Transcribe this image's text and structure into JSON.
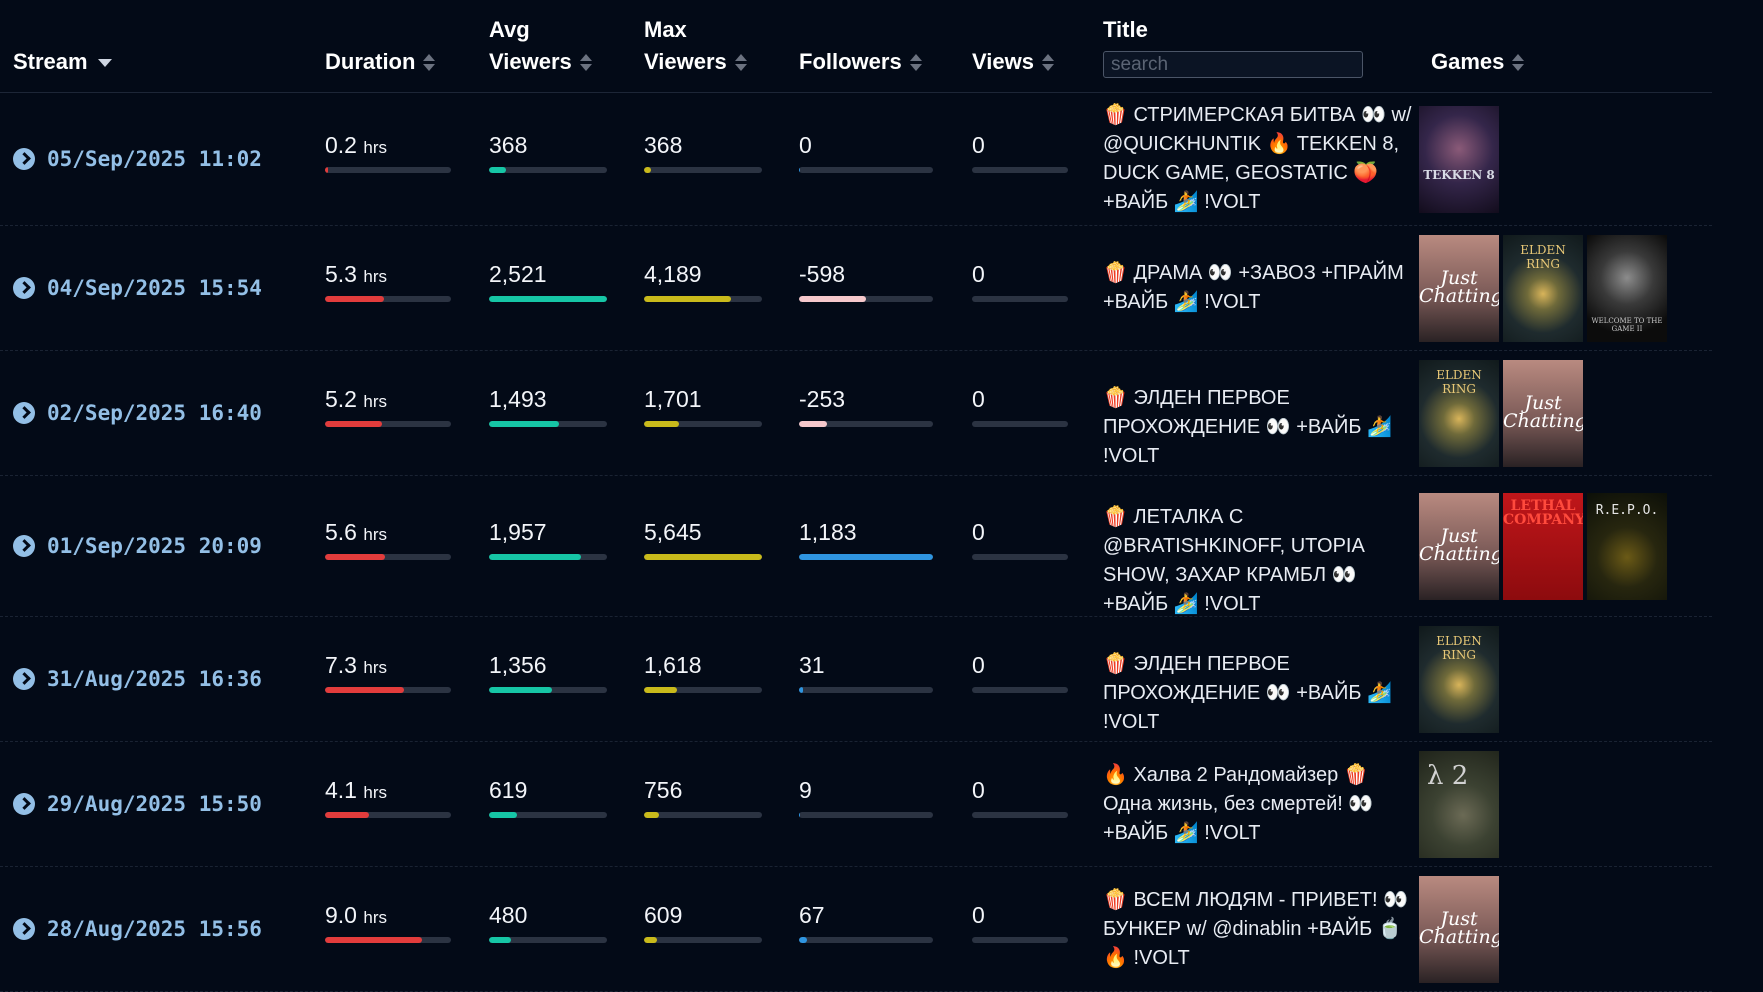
{
  "headers": {
    "stream": "Stream",
    "duration": "Duration",
    "avg_line1": "Avg",
    "avg_line2": "Viewers",
    "max_line1": "Max",
    "max_line2": "Viewers",
    "followers": "Followers",
    "views": "Views",
    "title": "Title",
    "games": "Games",
    "search_placeholder": "search"
  },
  "colors": {
    "duration": "#e23c3c",
    "avg": "#16c6a6",
    "max": "#c9ba1b",
    "followers_pos": "#2f95e0",
    "followers_neg": "#f6c8cc"
  },
  "rows": [
    {
      "date": "05/Sep/2025 11:02",
      "duration": "0.2",
      "duration_unit": "hrs",
      "duration_fill": 0.02,
      "avg": "368",
      "avg_fill": 0.14,
      "max": "368",
      "max_fill": 0.06,
      "followers": "0",
      "followers_fill": 0.01,
      "followers_kind": "pos",
      "views": "0",
      "title": "🍿 СТРИМЕРСКАЯ БИТВА 👀 w/ @QUICKHUNTIK 🔥 TEKKEN 8, DUCK GAME, GEOSTATIC 🍑 +ВАЙБ 🏄 !VOLT",
      "games": [
        "tekken"
      ]
    },
    {
      "date": "04/Sep/2025 15:54",
      "duration": "5.3",
      "duration_unit": "hrs",
      "duration_fill": 0.47,
      "avg": "2,521",
      "avg_fill": 1.0,
      "max": "4,189",
      "max_fill": 0.74,
      "followers": "-598",
      "followers_fill": 0.5,
      "followers_kind": "neg",
      "views": "0",
      "title": "🍿 ДРАМА 👀 +ЗАВОЗ +ПРАЙМ +ВАЙБ 🏄 !VOLT",
      "games": [
        "chatting",
        "elden",
        "welcome"
      ]
    },
    {
      "date": "02/Sep/2025 16:40",
      "duration": "5.2",
      "duration_unit": "hrs",
      "duration_fill": 0.45,
      "avg": "1,493",
      "avg_fill": 0.59,
      "max": "1,701",
      "max_fill": 0.3,
      "followers": "-253",
      "followers_fill": 0.21,
      "followers_kind": "neg",
      "views": "0",
      "title": "🍿 ЭЛДЕН ПЕРВОЕ ПРОХОЖДЕНИЕ 👀 +ВАЙБ 🏄 !VOLT",
      "games": [
        "elden",
        "chatting"
      ]
    },
    {
      "date": "01/Sep/2025 20:09",
      "duration": "5.6",
      "duration_unit": "hrs",
      "duration_fill": 0.48,
      "avg": "1,957",
      "avg_fill": 0.78,
      "max": "5,645",
      "max_fill": 1.0,
      "followers": "1,183",
      "followers_fill": 1.0,
      "followers_kind": "pos",
      "views": "0",
      "title": "🍿 ЛЕТАЛКА С @BRATISHKINOFF, UTOPIA SHOW, ЗАХАР КРАМБЛ 👀 +ВАЙБ 🏄 !VOLT",
      "games": [
        "chatting",
        "lethal",
        "repo"
      ]
    },
    {
      "date": "31/Aug/2025 16:36",
      "duration": "7.3",
      "duration_unit": "hrs",
      "duration_fill": 0.63,
      "avg": "1,356",
      "avg_fill": 0.53,
      "max": "1,618",
      "max_fill": 0.28,
      "followers": "31",
      "followers_fill": 0.03,
      "followers_kind": "pos",
      "views": "0",
      "title": "🍿 ЭЛДЕН ПЕРВОЕ ПРОХОЖДЕНИЕ 👀 +ВАЙБ 🏄 !VOLT",
      "games": [
        "elden"
      ]
    },
    {
      "date": "29/Aug/2025 15:50",
      "duration": "4.1",
      "duration_unit": "hrs",
      "duration_fill": 0.35,
      "avg": "619",
      "avg_fill": 0.24,
      "max": "756",
      "max_fill": 0.13,
      "followers": "9",
      "followers_fill": 0.01,
      "followers_kind": "pos",
      "views": "0",
      "title": "🔥 Халва 2 Рандомайзер 🍿 Одна жизнь, без смертей! 👀 +ВАЙБ 🏄 !VOLT",
      "games": [
        "halflife"
      ]
    },
    {
      "date": "28/Aug/2025 15:56",
      "duration": "9.0",
      "duration_unit": "hrs",
      "duration_fill": 0.77,
      "avg": "480",
      "avg_fill": 0.19,
      "max": "609",
      "max_fill": 0.11,
      "followers": "67",
      "followers_fill": 0.06,
      "followers_kind": "pos",
      "views": "0",
      "title": "🍿 ВСЕМ ЛЮДЯМ - ПРИВЕТ! 👀 БУНКЕР w/ @dinablin +ВАЙБ 🍵 🔥 !VOLT",
      "games": [
        "chatting"
      ]
    }
  ],
  "game_art": {
    "tekken": {
      "label": "TEKKEN 8",
      "bg": "#1b1530",
      "fg": "#d9dce6"
    },
    "chatting": {
      "label": "Just Chatting",
      "bg": "#9a6e68",
      "fg": "#ffffff"
    },
    "elden": {
      "label": "ELDEN RING",
      "bg": "#1d2a2d",
      "fg": "#e8c877"
    },
    "welcome": {
      "label": "WELCOME TO THE GAME II",
      "bg": "#101010",
      "fg": "#c8c8c8"
    },
    "lethal": {
      "label": "LETHAL COMPANY",
      "bg": "#b00f12",
      "fg": "#ff4a3d"
    },
    "repo": {
      "label": "R.E.P.O.",
      "bg": "#151a10",
      "fg": "#e5e5e5"
    },
    "halflife": {
      "label": "λ 2",
      "bg": "#2f3327",
      "fg": "#d2d2d2"
    }
  }
}
